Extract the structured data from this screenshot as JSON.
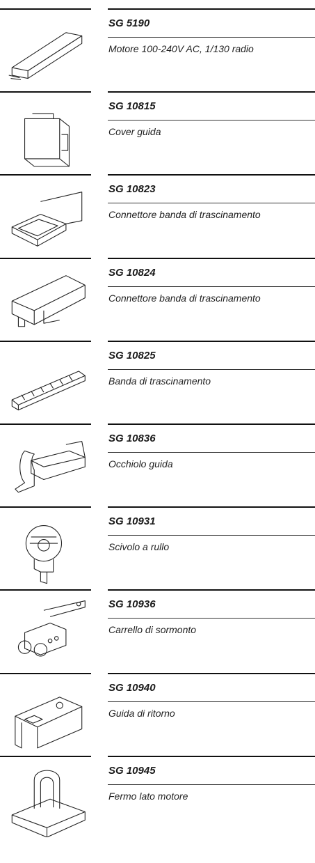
{
  "items": [
    {
      "code": "SG 5190",
      "description": "Motore 100-240V AC, 1/130 radio"
    },
    {
      "code": "SG 10815",
      "description": "Cover guida"
    },
    {
      "code": "SG 10823",
      "description": "Connettore banda di trascinamento"
    },
    {
      "code": "SG 10824",
      "description": "Connettore banda di trascinamento"
    },
    {
      "code": "SG 10825",
      "description": "Banda di trascinamento"
    },
    {
      "code": "SG 10836",
      "description": "Occhiolo guida"
    },
    {
      "code": "SG 10931",
      "description": "Scivolo a rullo"
    },
    {
      "code": "SG 10936",
      "description": "Carrello di sormonto"
    },
    {
      "code": "SG 10940",
      "description": "Guida di ritorno"
    },
    {
      "code": "SG 10945",
      "description": "Fermo lato motore"
    }
  ]
}
